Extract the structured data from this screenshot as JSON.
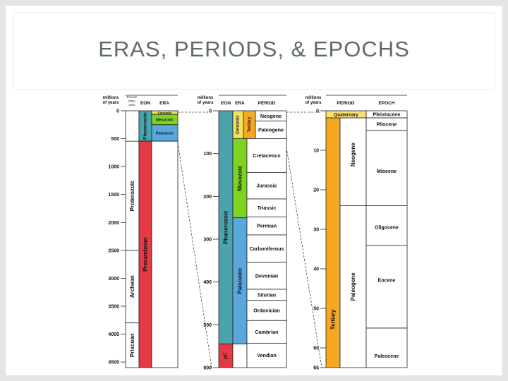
{
  "slide": {
    "title": "ERAS, PERIODS, & EPOCHS"
  },
  "colors": {
    "phanerozoic": "#4aa3ad",
    "precambrian": "#e63946",
    "cenozoic": "#f2e15b",
    "mesozoic": "#7ed321",
    "paleozoic": "#5aa7dc",
    "tertiary": "#f7a823",
    "quaternary": "#f7e070"
  },
  "chart_data": [
    {
      "type": "table",
      "panel": "eon",
      "headers": {
        "millions": "millions",
        "of_years": "of years",
        "zone": [
          "Precam",
          "brian",
          "zone"
        ],
        "eon": "EON",
        "era": "ERA"
      },
      "ticks": [
        {
          "label": "0",
          "value": 0
        },
        {
          "label": "500",
          "value": 500
        },
        {
          "label": "1000",
          "value": 1000
        },
        {
          "label": "1500",
          "value": 1500
        },
        {
          "label": "2000",
          "value": 2000
        },
        {
          "label": "2500",
          "value": 2500
        },
        {
          "label": "3000",
          "value": 3000
        },
        {
          "label": "3500",
          "value": 3500
        },
        {
          "label": "4000",
          "value": 4000
        },
        {
          "label": "4500",
          "value": 4500
        }
      ],
      "ylim": [
        0,
        4600
      ],
      "zones": [
        {
          "name": "Proterozoic",
          "from": 545,
          "to": 2500
        },
        {
          "name": "Archean",
          "from": 2500,
          "to": 3800
        },
        {
          "name": "Priscoan",
          "from": 3800,
          "to": 4600
        }
      ],
      "eons": [
        {
          "name": "Phanerozoic",
          "from": 0,
          "to": 545,
          "color": "phanerozoic"
        },
        {
          "name": "Precambrian",
          "from": 545,
          "to": 4600,
          "color": "precambrian"
        }
      ],
      "eras": [
        {
          "name": "Cenozoic",
          "from": 0,
          "to": 65,
          "color": "cenozoic"
        },
        {
          "name": "Mesozoic",
          "from": 65,
          "to": 250,
          "color": "mesozoic"
        },
        {
          "name": "Paleozoic",
          "from": 250,
          "to": 545,
          "color": "paleozoic"
        }
      ]
    },
    {
      "type": "table",
      "panel": "period",
      "headers": {
        "millions": "millions",
        "of_years": "of years",
        "eon": "EON",
        "era": "ERA",
        "period": "PERIOD"
      },
      "ticks": [
        {
          "label": "0",
          "value": 0
        },
        {
          "label": "100",
          "value": 100
        },
        {
          "label": "200",
          "value": 200
        },
        {
          "label": "300",
          "value": 300
        },
        {
          "label": "400",
          "value": 400
        },
        {
          "label": "500",
          "value": 500
        },
        {
          "label": "600",
          "value": 600
        }
      ],
      "ylim": [
        0,
        600
      ],
      "eons": [
        {
          "name": "Phanerozoic",
          "from": 0,
          "to": 545,
          "color": "phanerozoic"
        },
        {
          "name": "pC",
          "from": 545,
          "to": 600,
          "color": "precambrian"
        }
      ],
      "eras": [
        {
          "name": "Cenozoic",
          "from": 0,
          "to": 65,
          "color": "cenozoic"
        },
        {
          "name": "Mesozoic",
          "from": 65,
          "to": 250,
          "color": "mesozoic"
        },
        {
          "name": "Paleozoic",
          "from": 250,
          "to": 545,
          "color": "paleozoic"
        }
      ],
      "sub_era": {
        "name": "Tertiary",
        "from": 0,
        "to": 65,
        "color": "tertiary"
      },
      "periods": [
        {
          "name": "Neogene",
          "from": 0,
          "to": 24
        },
        {
          "name": "Paleogene",
          "from": 24,
          "to": 65
        },
        {
          "name": "Cretaceous",
          "from": 65,
          "to": 144
        },
        {
          "name": "Jurassic",
          "from": 144,
          "to": 206
        },
        {
          "name": "Triassic",
          "from": 206,
          "to": 248
        },
        {
          "name": "Permian",
          "from": 248,
          "to": 290
        },
        {
          "name": "Carboniferous",
          "from": 290,
          "to": 354
        },
        {
          "name": "Devonian",
          "from": 354,
          "to": 417
        },
        {
          "name": "Silurian",
          "from": 417,
          "to": 443
        },
        {
          "name": "Ordovician",
          "from": 443,
          "to": 490
        },
        {
          "name": "Cambrian",
          "from": 490,
          "to": 543
        },
        {
          "name": "Vendian",
          "from": 543,
          "to": 600
        }
      ]
    },
    {
      "type": "table",
      "panel": "epoch",
      "headers": {
        "millions": "millions",
        "of_years": "of years",
        "period": "PERIOD",
        "epoch": "EPOCH"
      },
      "ticks": [
        {
          "label": "0",
          "value": 0
        },
        {
          "label": "10",
          "value": 10
        },
        {
          "label": "20",
          "value": 20
        },
        {
          "label": "30",
          "value": 30
        },
        {
          "label": "40",
          "value": 40
        },
        {
          "label": "50",
          "value": 50
        },
        {
          "label": "60",
          "value": 60
        },
        {
          "label": "65",
          "value": 65
        }
      ],
      "ylim": [
        0,
        65
      ],
      "periods": [
        {
          "name": "Quaternary",
          "from": 0,
          "to": 1.8,
          "color": "quaternary"
        },
        {
          "name": "Tertiary",
          "from": 1.8,
          "to": 65,
          "color": "tertiary"
        }
      ],
      "subperiods": [
        {
          "name": "Neogene",
          "from": 1.8,
          "to": 24
        },
        {
          "name": "Paleogene",
          "from": 24,
          "to": 65
        }
      ],
      "epochs": [
        {
          "name": "Pleistocene",
          "from": 0,
          "to": 1.8
        },
        {
          "name": "Pliocene",
          "from": 1.8,
          "to": 5
        },
        {
          "name": "Miocene",
          "from": 5,
          "to": 24
        },
        {
          "name": "Oligocene",
          "from": 24,
          "to": 34
        },
        {
          "name": "Eocene",
          "from": 34,
          "to": 55
        },
        {
          "name": "Paleocene",
          "from": 55,
          "to": 65
        }
      ]
    }
  ]
}
